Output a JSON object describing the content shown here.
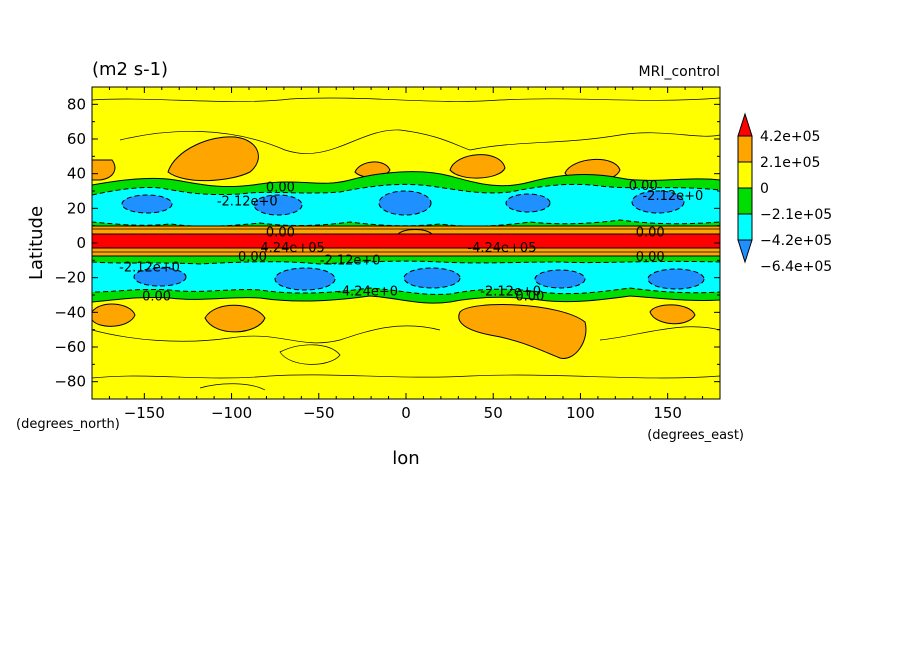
{
  "chart_data": {
    "type": "contour",
    "title": "(m2 s-1)",
    "subtitle": "MRI_control",
    "xlabel": "lon",
    "ylabel": "Latitude",
    "x_units": "(degrees_east)",
    "y_units": "(degrees_north)",
    "xlim": [
      -180,
      180
    ],
    "ylim": [
      -90,
      90
    ],
    "x_ticks": [
      -150,
      -100,
      -50,
      0,
      50,
      100,
      150
    ],
    "y_ticks": [
      80,
      60,
      40,
      20,
      0,
      -20,
      -40,
      -60,
      -80
    ],
    "colorbar": {
      "labels": [
        "4.2e+05",
        "2.1e+05",
        "0",
        "−2.1e+05",
        "−4.2e+05",
        "−6.4e+05"
      ],
      "colors": [
        "#ff0000",
        "#ffa500",
        "#ffff00",
        "#00dd00",
        "#00ffff",
        "#1e90ff"
      ]
    },
    "contour_labels": [
      {
        "text": "0.00",
        "lon": -72,
        "lat": 32
      },
      {
        "text": "-2.12e+0",
        "lon": -91,
        "lat": 24
      },
      {
        "text": "0.00",
        "lon": -72,
        "lat": 6
      },
      {
        "text": "4.24e+05",
        "lon": -65,
        "lat": -3
      },
      {
        "text": "0.00",
        "lon": -88,
        "lat": -8
      },
      {
        "text": "-2.12e+0",
        "lon": -32,
        "lat": -10
      },
      {
        "text": "-2.12e+0",
        "lon": -147,
        "lat": -14
      },
      {
        "text": "0.00",
        "lon": -143,
        "lat": -31
      },
      {
        "text": "-4.24e+0",
        "lon": -22,
        "lat": -28
      },
      {
        "text": "-2.12e+0",
        "lon": 60,
        "lat": -28
      },
      {
        "text": "0.00",
        "lon": 71,
        "lat": -31
      },
      {
        "text": "-4.24e+05",
        "lon": 55,
        "lat": -3
      },
      {
        "text": "0.00",
        "lon": 136,
        "lat": 33
      },
      {
        "text": "-2.12e+0",
        "lon": 153,
        "lat": 27
      },
      {
        "text": "0.00",
        "lon": 140,
        "lat": 6
      },
      {
        "text": "0.00",
        "lon": 140,
        "lat": -8
      }
    ]
  }
}
